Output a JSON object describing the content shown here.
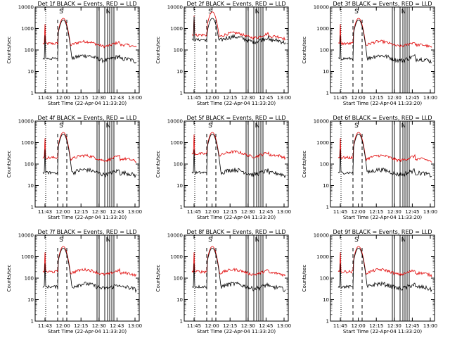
{
  "colors": {
    "events": "#000000",
    "lld": "#e00000",
    "background": "#ffffff"
  },
  "shared": {
    "xlabel": "Start Time (22-Apr-04 11:33:20)",
    "ylabel": "Counts/sec",
    "yticks": [
      "1",
      "10",
      "100",
      "1000",
      "10000"
    ],
    "annotations": [
      "S",
      "N"
    ]
  },
  "chart_data": [
    {
      "type": "line",
      "title": "Det 1f BLACK = Events, RED = LLD",
      "xticks": [
        "11:43",
        "12:00",
        "12:15",
        "12:30",
        "12:43",
        "13:00"
      ],
      "ylim": [
        1,
        10000
      ],
      "yscale": "log",
      "series": [
        {
          "name": "Events",
          "peak": 2500,
          "base": 40
        },
        {
          "name": "LLD",
          "peak": 3000,
          "base": 200
        }
      ]
    },
    {
      "type": "line",
      "title": "Det 2f BLACK = Events, RED = LLD",
      "xticks": [
        "11:45",
        "12:00",
        "12:15",
        "12:30",
        "12:45",
        "13:00"
      ],
      "ylim": [
        1,
        10000
      ],
      "yscale": "log",
      "series": [
        {
          "name": "Events",
          "peak": 3000,
          "base": 300
        },
        {
          "name": "LLD",
          "peak": 6000,
          "base": 500
        }
      ]
    },
    {
      "type": "line",
      "title": "Det 3f BLACK = Events, RED = LLD",
      "xticks": [
        "11:45",
        "12:00",
        "12:15",
        "12:30",
        "12:45",
        "13:00"
      ],
      "ylim": [
        1,
        10000
      ],
      "yscale": "log",
      "series": [
        {
          "name": "Events",
          "peak": 2500,
          "base": 40
        },
        {
          "name": "LLD",
          "peak": 3000,
          "base": 200
        }
      ]
    },
    {
      "type": "line",
      "title": "Det 4f BLACK = Events, RED = LLD",
      "xticks": [
        "11:43",
        "12:00",
        "12:15",
        "12:30",
        "12:43",
        "13:00"
      ],
      "ylim": [
        1,
        10000
      ],
      "yscale": "log",
      "series": [
        {
          "name": "Events",
          "peak": 2500,
          "base": 40
        },
        {
          "name": "LLD",
          "peak": 3000,
          "base": 200
        }
      ]
    },
    {
      "type": "line",
      "title": "Det 5f BLACK = Events, RED = LLD",
      "xticks": [
        "11:45",
        "12:00",
        "12:15",
        "12:30",
        "12:45",
        "13:00"
      ],
      "ylim": [
        1,
        10000
      ],
      "yscale": "log",
      "series": [
        {
          "name": "Events",
          "peak": 2500,
          "base": 40
        },
        {
          "name": "LLD",
          "peak": 3000,
          "base": 300
        }
      ]
    },
    {
      "type": "line",
      "title": "Det 6f BLACK = Events, RED = LLD",
      "xticks": [
        "11:45",
        "12:00",
        "12:15",
        "12:30",
        "12:45",
        "13:00"
      ],
      "ylim": [
        1,
        10000
      ],
      "yscale": "log",
      "series": [
        {
          "name": "Events",
          "peak": 2500,
          "base": 40
        },
        {
          "name": "LLD",
          "peak": 3000,
          "base": 200
        }
      ]
    },
    {
      "type": "line",
      "title": "Det 7f BLACK = Events, RED = LLD",
      "xticks": [
        "11:43",
        "12:00",
        "12:15",
        "12:30",
        "12:43",
        "13:00"
      ],
      "ylim": [
        1,
        10000
      ],
      "yscale": "log",
      "series": [
        {
          "name": "Events",
          "peak": 2500,
          "base": 40
        },
        {
          "name": "LLD",
          "peak": 3000,
          "base": 200
        }
      ]
    },
    {
      "type": "line",
      "title": "Det 8f BLACK = Events, RED = LLD",
      "xticks": [
        "11:45",
        "12:00",
        "12:15",
        "12:30",
        "12:45",
        "13:00"
      ],
      "ylim": [
        1,
        10000
      ],
      "yscale": "log",
      "series": [
        {
          "name": "Events",
          "peak": 2500,
          "base": 40
        },
        {
          "name": "LLD",
          "peak": 3000,
          "base": 200
        }
      ]
    },
    {
      "type": "line",
      "title": "Det 9f BLACK = Events, RED = LLD",
      "xticks": [
        "11:45",
        "12:00",
        "12:15",
        "12:30",
        "12:45",
        "13:00"
      ],
      "ylim": [
        1,
        10000
      ],
      "yscale": "log",
      "series": [
        {
          "name": "Events",
          "peak": 2500,
          "base": 40
        },
        {
          "name": "LLD",
          "peak": 3000,
          "base": 200
        }
      ]
    }
  ]
}
